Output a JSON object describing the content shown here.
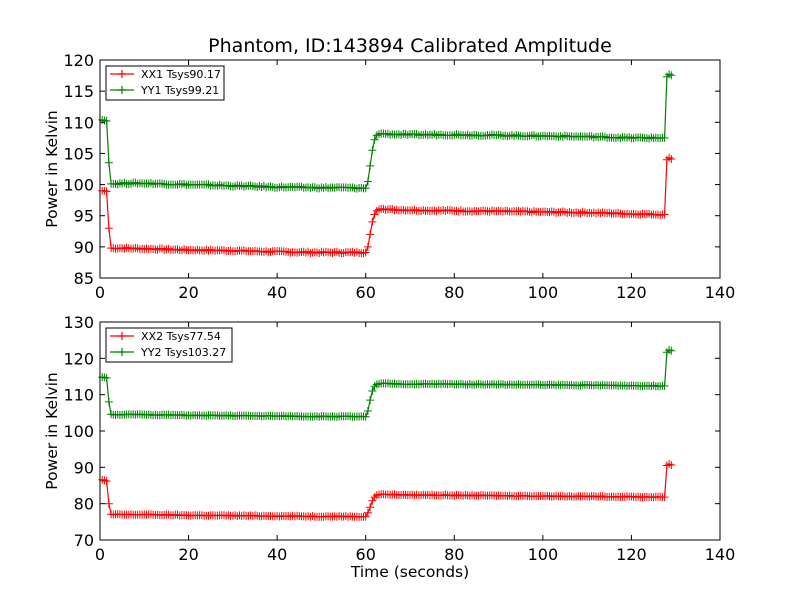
{
  "chart_data": [
    {
      "type": "line",
      "title": "Phantom, ID:143894 Calibrated Amplitude",
      "xlabel": "",
      "ylabel": "Power in Kelvin",
      "xlim": [
        0,
        140
      ],
      "ylim": [
        85,
        120
      ],
      "xticks": [
        "0",
        "20",
        "40",
        "60",
        "80",
        "100",
        "120",
        "140"
      ],
      "yticks": [
        "85",
        "90",
        "95",
        "100",
        "105",
        "110",
        "115",
        "120"
      ],
      "legend_position": "top-left",
      "series": [
        {
          "name": "XX1 Tsys90.17",
          "color": "#ff0000",
          "x": [
            0.5,
            1,
            1.5,
            2,
            2.5,
            3,
            5,
            10,
            20,
            30,
            40,
            50,
            55,
            60,
            60.5,
            61,
            61.5,
            62,
            62.5,
            63,
            63.5,
            64,
            65,
            70,
            80,
            90,
            100,
            110,
            120,
            127,
            127.5,
            128,
            128.5,
            129
          ],
          "values": [
            99,
            99,
            98.9,
            93,
            89.8,
            89.8,
            89.8,
            89.7,
            89.5,
            89.4,
            89.2,
            89.1,
            89.1,
            89.1,
            90,
            92,
            94,
            95.2,
            95.8,
            96,
            96.1,
            96.1,
            96,
            95.9,
            95.8,
            95.7,
            95.6,
            95.5,
            95.3,
            95.2,
            95.2,
            104,
            104.3,
            104.2
          ]
        },
        {
          "name": "YY1 Tsys99.21",
          "color": "#008000",
          "x": [
            0.5,
            1,
            1.5,
            2,
            2.5,
            3,
            5,
            10,
            20,
            30,
            40,
            50,
            55,
            60,
            60.5,
            61,
            61.5,
            62,
            62.5,
            63,
            63.5,
            64,
            65,
            70,
            80,
            90,
            100,
            110,
            120,
            127,
            127.5,
            128,
            128.5,
            129
          ],
          "values": [
            110.5,
            110.3,
            110.2,
            103.5,
            100.1,
            100.1,
            100.2,
            100.2,
            100,
            99.8,
            99.6,
            99.5,
            99.5,
            99.4,
            100.5,
            103,
            105.5,
            107.2,
            107.9,
            108.1,
            108.2,
            108.2,
            108.1,
            108,
            108,
            107.9,
            107.8,
            107.7,
            107.5,
            107.5,
            107.5,
            117.3,
            117.7,
            117.6
          ]
        }
      ]
    },
    {
      "type": "line",
      "title": "",
      "xlabel": "Time (seconds)",
      "ylabel": "Power in Kelvin",
      "xlim": [
        0,
        140
      ],
      "ylim": [
        70,
        130
      ],
      "xticks": [
        "0",
        "20",
        "40",
        "60",
        "80",
        "100",
        "120",
        "140"
      ],
      "yticks": [
        "70",
        "80",
        "90",
        "100",
        "110",
        "120",
        "130"
      ],
      "legend_position": "top-left",
      "series": [
        {
          "name": "XX2 Tsys77.54",
          "color": "#ff0000",
          "x": [
            0.5,
            1,
            1.5,
            2,
            2.5,
            3,
            5,
            10,
            20,
            30,
            40,
            50,
            55,
            60,
            60.5,
            61,
            61.5,
            62,
            62.5,
            63,
            63.5,
            64,
            65,
            70,
            80,
            90,
            100,
            110,
            120,
            127,
            127.5,
            128,
            128.5,
            129
          ],
          "values": [
            86.5,
            86.4,
            86.2,
            80,
            77.1,
            77,
            77,
            77,
            76.8,
            76.7,
            76.6,
            76.5,
            76.5,
            76.4,
            77.5,
            79,
            80.8,
            81.8,
            82.3,
            82.5,
            82.6,
            82.6,
            82.5,
            82.4,
            82.3,
            82.2,
            82.1,
            82,
            81.9,
            81.8,
            81.8,
            90.5,
            90.9,
            90.7
          ]
        },
        {
          "name": "YY2 Tsys103.27",
          "color": "#008000",
          "x": [
            0.5,
            1,
            1.5,
            2,
            2.5,
            3,
            5,
            10,
            20,
            30,
            40,
            50,
            55,
            60,
            60.5,
            61,
            61.5,
            62,
            62.5,
            63,
            63.5,
            64,
            65,
            70,
            80,
            90,
            100,
            110,
            120,
            127,
            127.5,
            128,
            128.5,
            129
          ],
          "values": [
            114.9,
            114.8,
            114.6,
            108,
            104.6,
            104.5,
            104.5,
            104.5,
            104.3,
            104.2,
            104.1,
            104,
            104,
            103.9,
            105.5,
            108.5,
            111,
            112.3,
            112.8,
            113,
            113.1,
            113.1,
            113,
            112.9,
            112.9,
            112.8,
            112.7,
            112.6,
            112.5,
            112.4,
            112.4,
            121.7,
            122.3,
            122.1
          ]
        }
      ]
    }
  ]
}
